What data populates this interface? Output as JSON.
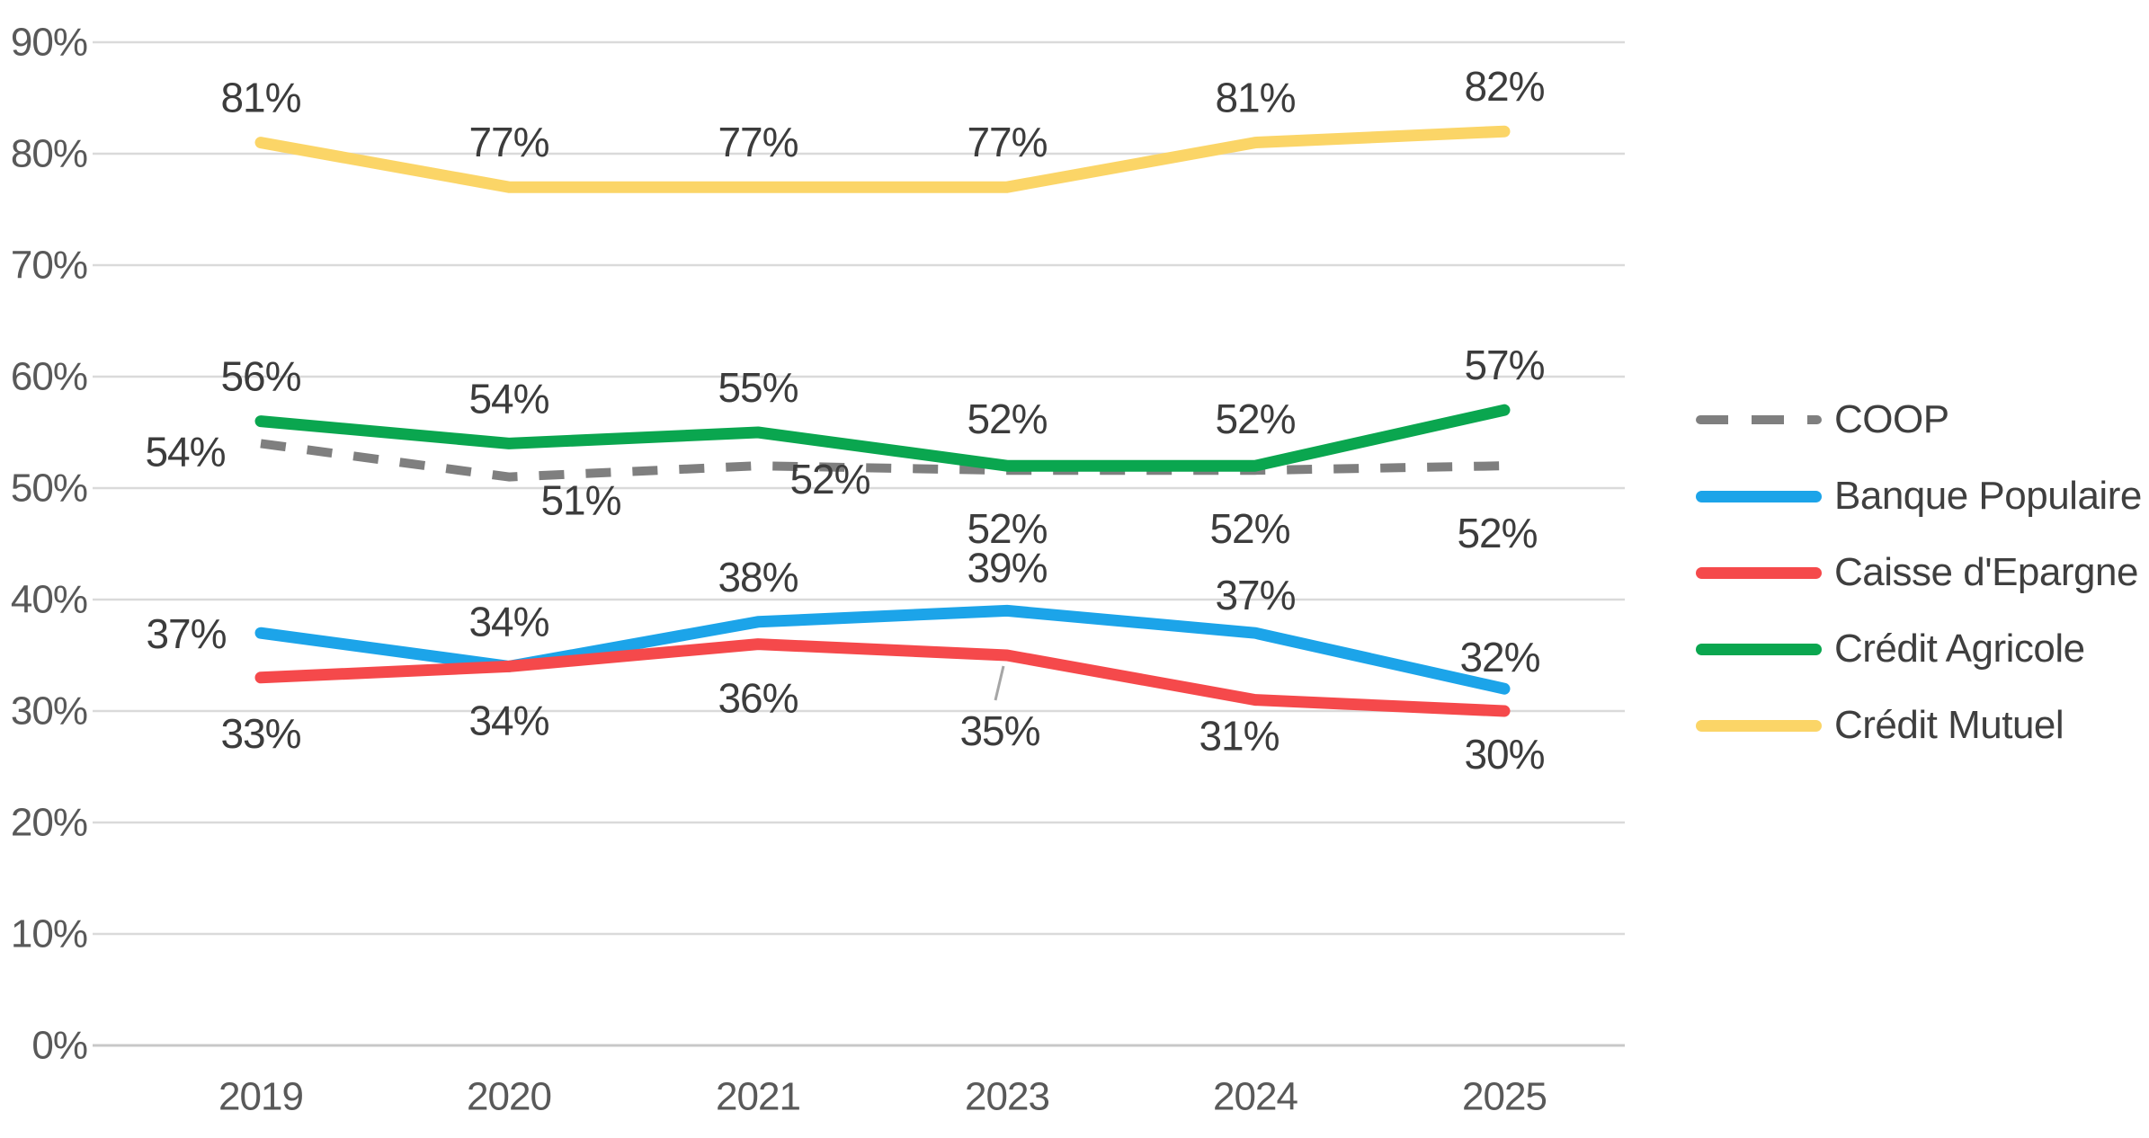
{
  "chart_data": {
    "type": "line",
    "title": "",
    "categories": [
      "2019",
      "2020",
      "2021",
      "2023",
      "2024",
      "2025"
    ],
    "series": [
      {
        "name": "COOP",
        "color": "#7f7f7f",
        "dashed": true,
        "values": [
          54,
          51,
          52,
          52,
          52,
          52
        ],
        "labels": [
          "54%",
          "51%",
          "52%",
          "52%",
          "52%",
          "52%"
        ],
        "label_offsets": [
          [
            -84,
            9
          ],
          [
            80,
            26
          ],
          [
            80,
            15
          ],
          [
            0,
            70
          ],
          [
            -6,
            70
          ],
          [
            -8,
            75
          ]
        ]
      },
      {
        "name": "Banque Populaire",
        "color": "#1ca4e9",
        "dashed": false,
        "values": [
          37,
          34,
          38,
          39,
          37,
          32
        ],
        "labels": [
          "37%",
          "34%",
          "38%",
          "39%",
          "37%",
          "32%"
        ],
        "label_offsets": [
          [
            -83,
            1
          ],
          [
            0,
            -50
          ],
          [
            0,
            -50
          ],
          [
            0,
            -48
          ],
          [
            0,
            -42
          ],
          [
            -5,
            -35
          ]
        ]
      },
      {
        "name": "Caisse d'Epargne",
        "color": "#f5494b",
        "dashed": false,
        "values": [
          33,
          34,
          36,
          35,
          31,
          30
        ],
        "labels": [
          "33%",
          "34%",
          "36%",
          "35%",
          "31%",
          "30%"
        ],
        "label_offsets": [
          [
            0,
            62
          ],
          [
            0,
            60
          ],
          [
            0,
            60
          ],
          [
            -8,
            84
          ],
          [
            -18,
            40
          ],
          [
            0,
            48
          ]
        ]
      },
      {
        "name": "Crédit Agricole",
        "color": "#0aa64f",
        "dashed": false,
        "values": [
          56,
          54,
          55,
          52,
          52,
          57
        ],
        "labels": [
          "56%",
          "54%",
          "55%",
          "52%",
          "52%",
          "57%"
        ],
        "label_offsets": [
          [
            0,
            -50
          ],
          [
            0,
            -50
          ],
          [
            0,
            -50
          ],
          [
            0,
            -52
          ],
          [
            0,
            -52
          ],
          [
            0,
            -50
          ]
        ]
      },
      {
        "name": "Crédit Mutuel",
        "color": "#fbd567",
        "dashed": false,
        "values": [
          81,
          77,
          77,
          77,
          81,
          82
        ],
        "labels": [
          "81%",
          "77%",
          "77%",
          "77%",
          "81%",
          "82%"
        ],
        "label_offsets": [
          [
            0,
            -50
          ],
          [
            0,
            -50
          ],
          [
            0,
            -50
          ],
          [
            0,
            -50
          ],
          [
            0,
            -50
          ],
          [
            0,
            -50
          ]
        ]
      }
    ],
    "y_axis": {
      "min": 0,
      "max": 90,
      "step": 10,
      "tick_labels": [
        "0%",
        "10%",
        "20%",
        "30%",
        "40%",
        "50%",
        "60%",
        "70%",
        "80%",
        "90%"
      ]
    },
    "grid": true,
    "legend_position": "right",
    "annotation": {
      "leader_line": {
        "series_index": 2,
        "point_index": 3
      }
    },
    "style_colors": {
      "gridline": "#dadada",
      "axis_line": "#c8c8c8",
      "tick_text": "#595959",
      "data_label_text": "#3c3c3c",
      "leader_line": "#a6a6a6"
    }
  }
}
